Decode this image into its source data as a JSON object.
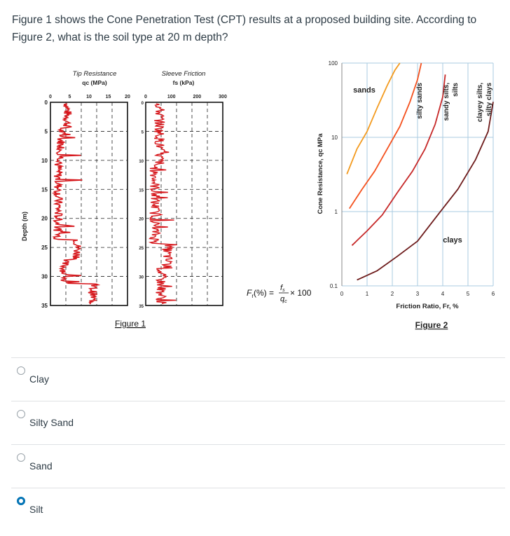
{
  "question": {
    "text": "Figure 1 shows the Cone Penetration Test (CPT) results at a proposed building site. According to Figure 2, what is the soil type at 20 m depth?"
  },
  "figure1": {
    "caption": "Figure 1",
    "depth_label": "Depth (m)",
    "depth_ticks": [
      "0",
      "5",
      "10",
      "15",
      "20",
      "25",
      "30",
      "35"
    ],
    "tip_title": "Tip Resistance",
    "tip_subtitle": "qc (MPa)",
    "tip_ticks": [
      "0",
      "5",
      "10",
      "15",
      "20"
    ],
    "sleeve_title": "Sleeve Friction",
    "sleeve_subtitle": "fs (kPa)",
    "sleeve_ticks": [
      "0",
      "100",
      "200",
      "300"
    ]
  },
  "formula": {
    "lhs": "F",
    "sub": "r",
    "mid": "(%) =",
    "num": "f",
    "num_sub": "s",
    "den": "q",
    "den_sub": "c",
    "rhs": "× 100"
  },
  "chart_data": {
    "type": "line",
    "title": "Figure 2",
    "xlabel": "Friction Ratio, Fr, %",
    "ylabel": "Cone Resistance, qc MPa",
    "xlim": [
      0,
      6
    ],
    "ylim": [
      0.1,
      100
    ],
    "y_scale": "log",
    "x_ticks": [
      "0",
      "1",
      "2",
      "3",
      "4",
      "5",
      "6"
    ],
    "y_ticks": [
      "0.1",
      "1",
      "10",
      "100"
    ],
    "grid": true,
    "zone_labels": [
      "sands",
      "silty sands",
      "sandy silts, silts",
      "clayey silts, silty clays",
      "clays"
    ],
    "series": [
      {
        "color": "#f39a1e",
        "x": [
          0.2,
          0.6,
          1.0,
          1.4,
          1.8,
          2.1,
          2.3
        ],
        "y": [
          3.2,
          7,
          12,
          25,
          50,
          80,
          100
        ]
      },
      {
        "color": "#f4511e",
        "x": [
          0.3,
          0.8,
          1.3,
          1.8,
          2.3,
          2.7,
          3.0,
          3.15
        ],
        "y": [
          1.1,
          2,
          3.5,
          7,
          14,
          30,
          60,
          100
        ]
      },
      {
        "color": "#c62828",
        "x": [
          0.4,
          1.0,
          1.6,
          2.2,
          2.8,
          3.3,
          3.7,
          4.0,
          4.1
        ],
        "y": [
          0.35,
          0.55,
          0.9,
          1.8,
          3.5,
          7,
          15,
          35,
          70
        ]
      },
      {
        "color": "#6d1b1b",
        "x": [
          0.6,
          1.4,
          2.2,
          3.0,
          3.8,
          4.6,
          5.3,
          5.8,
          6.1
        ],
        "y": [
          0.12,
          0.16,
          0.25,
          0.4,
          0.9,
          2,
          5,
          12,
          30
        ]
      }
    ]
  },
  "choices": [
    {
      "label": "Clay",
      "selected": false
    },
    {
      "label": "Silty Sand",
      "selected": false
    },
    {
      "label": "Sand",
      "selected": false
    },
    {
      "label": "Silt",
      "selected": true
    }
  ]
}
